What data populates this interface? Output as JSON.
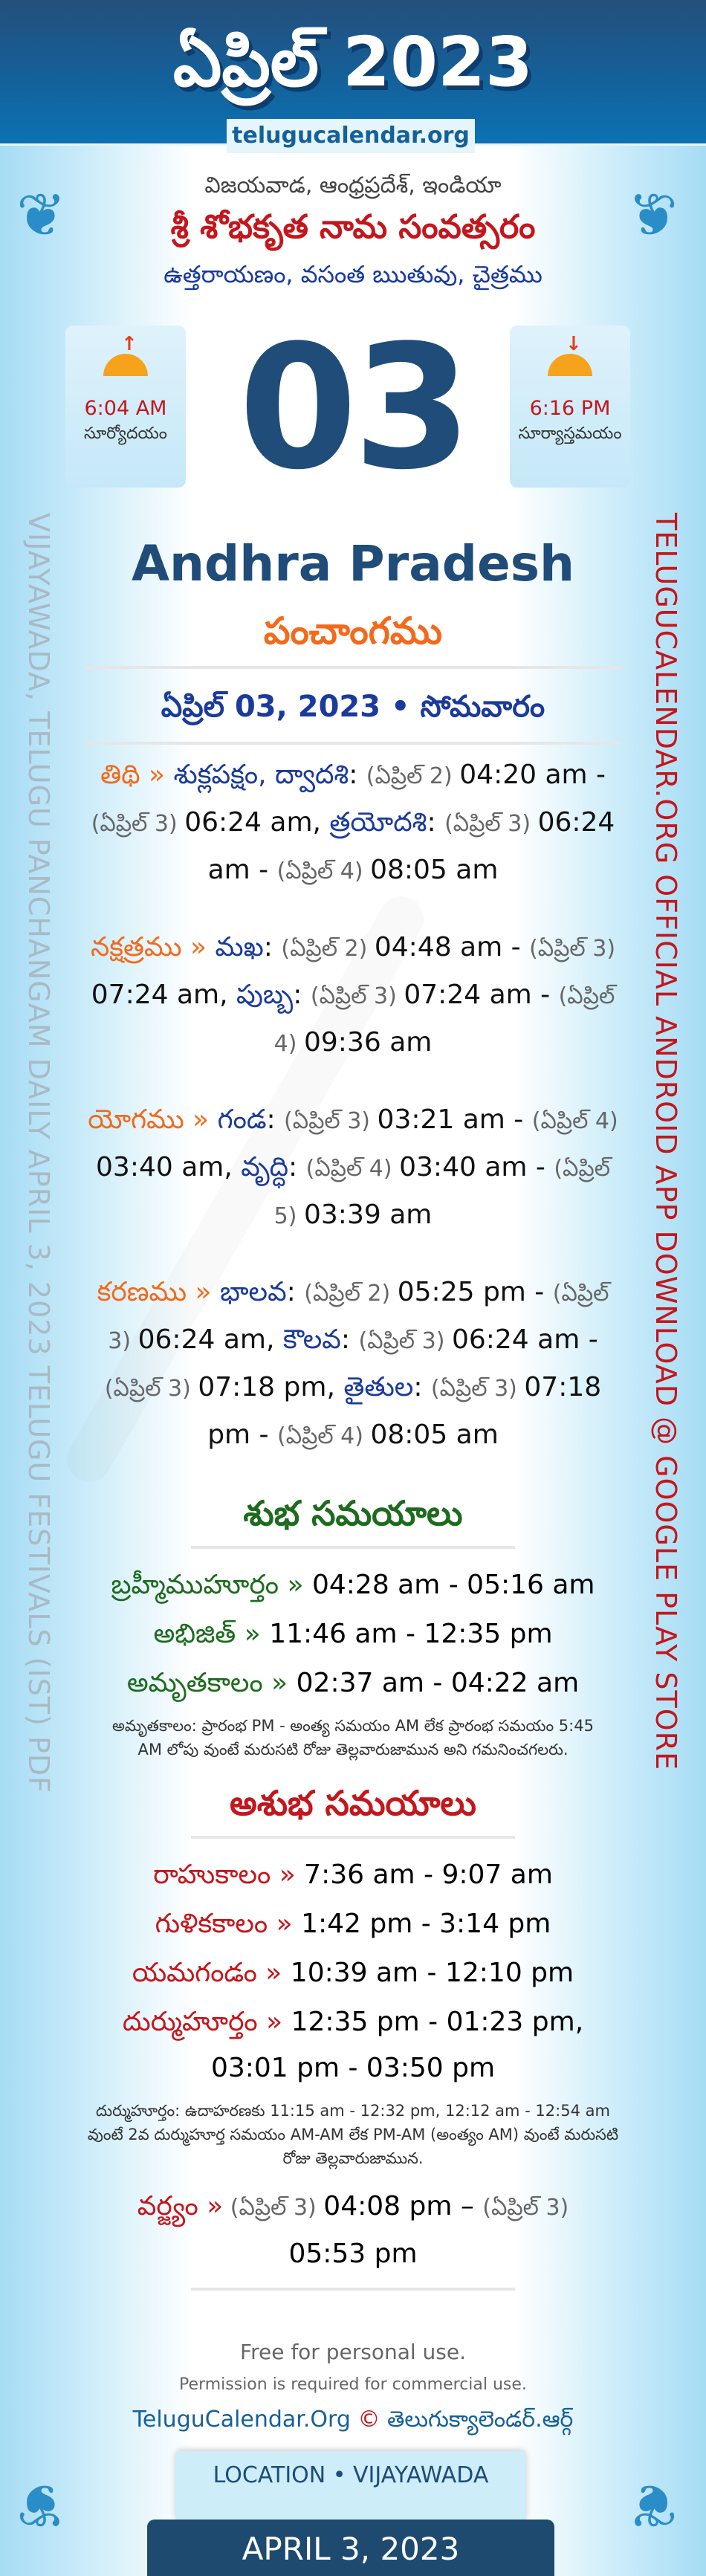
{
  "header": {
    "title": "ఏప్రిల్ 2023",
    "site": "telugucalendar.org"
  },
  "place": "విజయవాడ, ఆంధ్రప్రదేశ్, ఇండియా",
  "year_name": "శ్రీ శోభకృత నామ సంవత్సరం",
  "season": "ఉత్తరాయణం, వసంత ఋతువు, చైత్రము",
  "sunrise": {
    "time": "6:04 AM",
    "label": "సూర్యోదయం",
    "icon": "sunrise-icon"
  },
  "sunset": {
    "time": "6:16 PM",
    "label": "సూర్యాస్తమయం",
    "icon": "sunset-icon"
  },
  "day": "03",
  "state": "Andhra Pradesh",
  "panchangam": "పంచాంగము",
  "date_line": "ఏప్రిల్ 03, 2023 • సోమవారం",
  "watermark_left": "VIJAYAWADA, TELUGU PANCHANGAM DAILY APRIL 3, 2023 TELUGU FESTIVALS (IST) PDF",
  "watermark_right": "TELUGUCALENDAR.ORG OFFICIAL ANDROID APP DOWNLOAD @ GOOGLE PLAY STORE",
  "center_watermark": "telugucalendar.org",
  "panchang": [
    {
      "name": "tithi",
      "segments": [
        [
          "lab",
          "తిథి » "
        ],
        [
          "nm",
          "శుక్లపక్షం, ద్వాదశి"
        ],
        [
          "tm",
          ": "
        ],
        [
          "dt",
          "(ఏప్రిల్ 2) "
        ],
        [
          "tm",
          "04:20 am - "
        ],
        [
          "dt",
          "(ఏప్రిల్ 3) "
        ],
        [
          "tm",
          "06:24 am, "
        ],
        [
          "nm",
          "త్రయోదశి"
        ],
        [
          "tm",
          ": "
        ],
        [
          "dt",
          "(ఏప్రిల్ 3) "
        ],
        [
          "tm",
          "06:24 am - "
        ],
        [
          "dt",
          "(ఏప్రిల్ 4) "
        ],
        [
          "tm",
          "08:05 am"
        ]
      ]
    },
    {
      "name": "nakshatram",
      "segments": [
        [
          "lab",
          "నక్షత్రము » "
        ],
        [
          "nm",
          "మఖ"
        ],
        [
          "tm",
          ": "
        ],
        [
          "dt",
          "(ఏప్రిల్ 2) "
        ],
        [
          "tm",
          "04:48 am - "
        ],
        [
          "dt",
          "(ఏప్రిల్ 3) "
        ],
        [
          "tm",
          "07:24 am, "
        ],
        [
          "nm",
          "పుబ్బ"
        ],
        [
          "tm",
          ": "
        ],
        [
          "dt",
          "(ఏప్రిల్ 3) "
        ],
        [
          "tm",
          "07:24 am - "
        ],
        [
          "dt",
          "(ఏప్రిల్ 4) "
        ],
        [
          "tm",
          "09:36 am"
        ]
      ]
    },
    {
      "name": "yogam",
      "segments": [
        [
          "lab",
          "యోగము » "
        ],
        [
          "nm",
          "గండ"
        ],
        [
          "tm",
          ": "
        ],
        [
          "dt",
          "(ఏప్రిల్ 3) "
        ],
        [
          "tm",
          "03:21 am - "
        ],
        [
          "dt",
          "(ఏప్రిల్ 4) "
        ],
        [
          "tm",
          "03:40 am, "
        ],
        [
          "nm",
          "వృద్ధి"
        ],
        [
          "tm",
          ": "
        ],
        [
          "dt",
          "(ఏప్రిల్ 4) "
        ],
        [
          "tm",
          "03:40 am - "
        ],
        [
          "dt",
          "(ఏప్రిల్ 5) "
        ],
        [
          "tm",
          "03:39 am"
        ]
      ]
    },
    {
      "name": "karanam",
      "segments": [
        [
          "lab",
          "కరణము » "
        ],
        [
          "nm",
          "భాలవ"
        ],
        [
          "tm",
          ": "
        ],
        [
          "dt",
          "(ఏప్రిల్ 2) "
        ],
        [
          "tm",
          "05:25 pm - "
        ],
        [
          "dt",
          "(ఏప్రిల్ 3) "
        ],
        [
          "tm",
          "06:24 am, "
        ],
        [
          "nm",
          "కౌలవ"
        ],
        [
          "tm",
          ": "
        ],
        [
          "dt",
          "(ఏప్రిల్ 3) "
        ],
        [
          "tm",
          "06:24 am - "
        ],
        [
          "dt",
          "(ఏప్రిల్ 3) "
        ],
        [
          "tm",
          "07:18 pm, "
        ],
        [
          "nm",
          "తైతుల"
        ],
        [
          "tm",
          ": "
        ],
        [
          "dt",
          "(ఏప్రిల్ 3) "
        ],
        [
          "tm",
          "07:18 pm - "
        ],
        [
          "dt",
          "(ఏప్రిల్ 4) "
        ],
        [
          "tm",
          "08:05 am"
        ]
      ]
    }
  ],
  "shubha": {
    "title": "శుభ సమయాలు",
    "rows": [
      {
        "label": "బ్రహ్మీముహూర్తం »",
        "value": " 04:28 am - 05:16 am"
      },
      {
        "label": "అభిజిత్ »",
        "value": " 11:46 am - 12:35 pm"
      },
      {
        "label": "అమృతకాలం »",
        "value": " 02:37 am - 04:22 am"
      }
    ],
    "note": "అమృతకాలం: ప్రారంభ PM - అంత్య సమయం AM లేక ప్రారంభ సమయం 5:45 AM లోపు వుంటే మరుసటి రోజు తెల్లవారుజామున అని గమనించగలరు."
  },
  "ashubha": {
    "title": "అశుభ సమయాలు",
    "rows": [
      {
        "label": "రాహుకాలం »",
        "value": " 7:36 am - 9:07 am"
      },
      {
        "label": "గుళికకాలం »",
        "value": " 1:42 pm - 3:14 pm"
      },
      {
        "label": "యమగండం »",
        "value": " 10:39 am - 12:10 pm"
      },
      {
        "label": "దుర్ముహూర్తం »",
        "value": " 12:35 pm - 01:23 pm, 03:01 pm - 03:50 pm"
      }
    ],
    "note": "దుర్ముహూర్తం: ఉదాహరణకు 11:15 am - 12:32 pm, 12:12 am - 12:54 am వుంటే 2వ దుర్ముహూర్త సమయం AM-AM లేక PM-AM (అంత్యం AM) వుంటే మరుసటి రోజు తెల్లవారుజామున.",
    "varjyam": {
      "label": "వర్జ్యం »",
      "date1": " (ఏప్రిల్ 3) ",
      "time1": "04:08 pm – ",
      "date2": "(ఏప్రిల్ 3) ",
      "time2": "05:53 pm"
    }
  },
  "footer": {
    "free": "Free for personal use.",
    "permission": "Permission is required for commercial use.",
    "brand_en": "TeluguCalendar.Org",
    "copyright": "©",
    "brand_te": "తెలుగుక్యాలెండర్.ఆర్గ్",
    "location": "LOCATION • VIJAYAWADA",
    "date": "APRIL 3, 2023"
  }
}
